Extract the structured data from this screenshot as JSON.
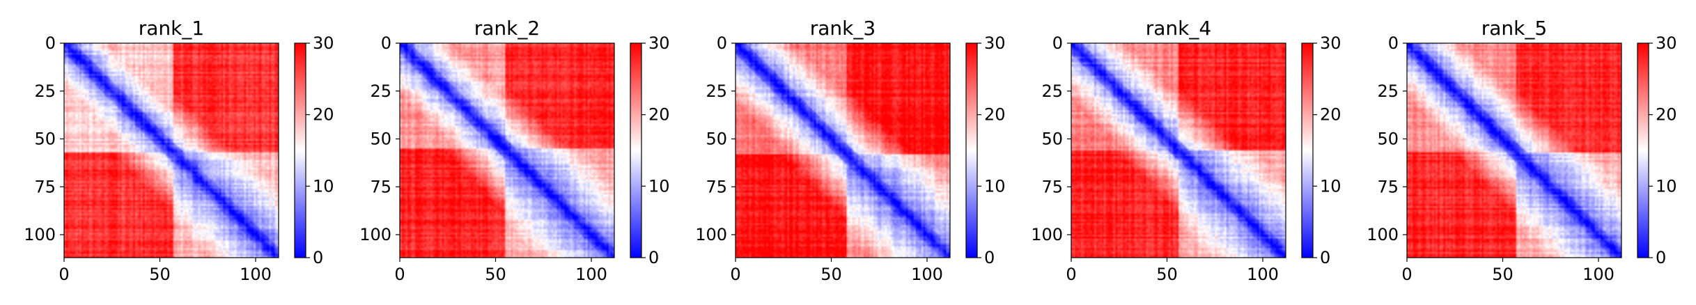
{
  "chart_data": [
    {
      "type": "heatmap",
      "title": "rank_1",
      "n": 112,
      "xticks": [
        0,
        50,
        100
      ],
      "yticks": [
        0,
        25,
        50,
        75,
        100
      ],
      "colorbar": {
        "vmin": 0,
        "vmax": 30,
        "ticks": [
          0,
          10,
          20,
          30
        ],
        "colors": [
          "#0000ff",
          "#ffffff",
          "#ff0000"
        ]
      },
      "pattern": {
        "band_width": 6,
        "domain_boundary": 57,
        "domain_values": [
          18,
          19
        ],
        "background": 27
      }
    },
    {
      "type": "heatmap",
      "title": "rank_2",
      "n": 112,
      "xticks": [
        0,
        50,
        100
      ],
      "yticks": [
        0,
        25,
        50,
        75,
        100
      ],
      "colorbar": {
        "vmin": 0,
        "vmax": 30,
        "ticks": [
          0,
          10,
          20,
          30
        ],
        "colors": [
          "#0000ff",
          "#ffffff",
          "#ff0000"
        ]
      },
      "pattern": {
        "band_width": 6,
        "domain_boundary": 55,
        "domain_values": [
          21,
          20
        ],
        "background": 28
      }
    },
    {
      "type": "heatmap",
      "title": "rank_3",
      "n": 112,
      "xticks": [
        0,
        50,
        100
      ],
      "yticks": [
        0,
        25,
        50,
        75,
        100
      ],
      "colorbar": {
        "vmin": 0,
        "vmax": 30,
        "ticks": [
          0,
          10,
          20,
          30
        ],
        "colors": [
          "#0000ff",
          "#ffffff",
          "#ff0000"
        ]
      },
      "pattern": {
        "band_width": 6,
        "domain_boundary": 58,
        "domain_values": [
          23,
          21
        ],
        "background": 29
      }
    },
    {
      "type": "heatmap",
      "title": "rank_4",
      "n": 112,
      "xticks": [
        0,
        50,
        100
      ],
      "yticks": [
        0,
        25,
        50,
        75,
        100
      ],
      "colorbar": {
        "vmin": 0,
        "vmax": 30,
        "ticks": [
          0,
          10,
          20,
          30
        ],
        "colors": [
          "#0000ff",
          "#ffffff",
          "#ff0000"
        ]
      },
      "pattern": {
        "band_width": 6,
        "domain_boundary": 56,
        "domain_values": [
          22,
          20
        ],
        "background": 28
      }
    },
    {
      "type": "heatmap",
      "title": "rank_5",
      "n": 112,
      "xticks": [
        0,
        50,
        100
      ],
      "yticks": [
        0,
        25,
        50,
        75,
        100
      ],
      "colorbar": {
        "vmin": 0,
        "vmax": 30,
        "ticks": [
          0,
          10,
          20,
          30
        ],
        "colors": [
          "#0000ff",
          "#ffffff",
          "#ff0000"
        ]
      },
      "pattern": {
        "band_width": 6,
        "domain_boundary": 57,
        "domain_values": [
          22,
          20
        ],
        "background": 28
      }
    }
  ]
}
